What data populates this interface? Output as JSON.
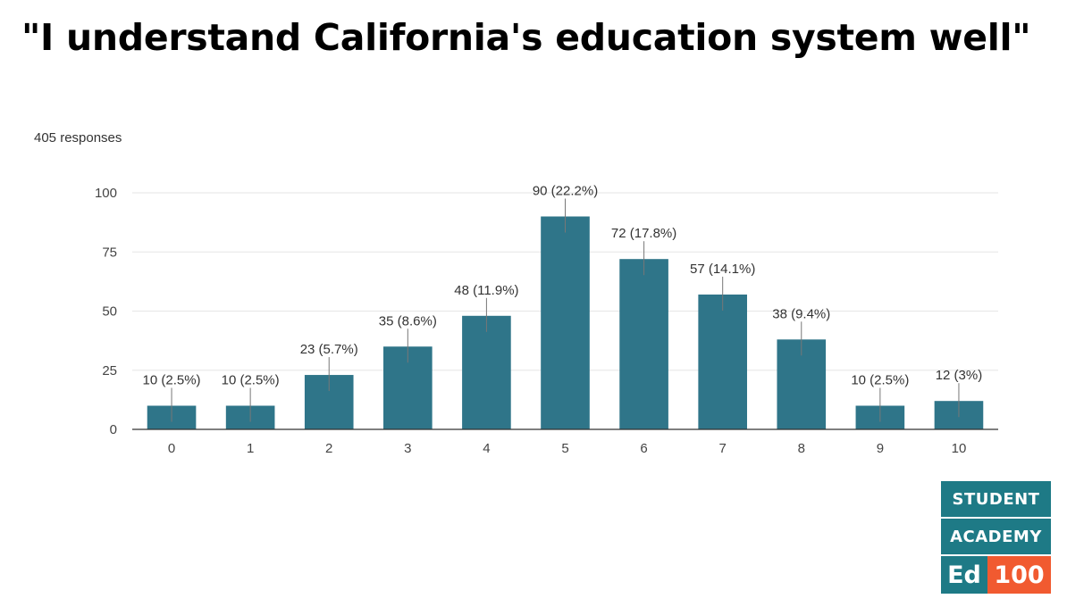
{
  "title": "\"I understand California's education system well\"",
  "responses_label": "405 responses",
  "chart_data": {
    "type": "bar",
    "categories": [
      "0",
      "1",
      "2",
      "3",
      "4",
      "5",
      "6",
      "7",
      "8",
      "9",
      "10"
    ],
    "values": [
      10,
      10,
      23,
      35,
      48,
      90,
      72,
      57,
      38,
      10,
      12
    ],
    "data_labels": [
      "10 (2.5%)",
      "10 (2.5%)",
      "23 (5.7%)",
      "35 (8.6%)",
      "48 (11.9%)",
      "90 (22.2%)",
      "72 (17.8%)",
      "57 (14.1%)",
      "38 (9.4%)",
      "10 (2.5%)",
      "12 (3%)"
    ],
    "ylim": [
      0,
      100
    ],
    "yticks": [
      0,
      25,
      50,
      75,
      100
    ],
    "grid": true,
    "bar_color": "#2f7589"
  },
  "logo": {
    "line1": "STUDENT",
    "line2": "ACADEMY",
    "ed": "Ed",
    "num": "100",
    "teal": "#1e7a86",
    "orange": "#f15a30"
  }
}
